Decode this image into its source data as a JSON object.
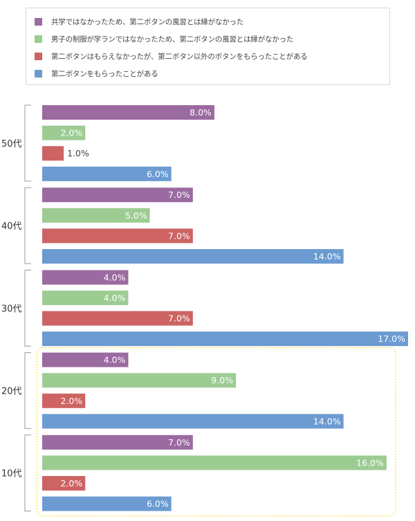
{
  "chart_data": {
    "type": "bar",
    "orientation": "horizontal",
    "categories": [
      "50代",
      "40代",
      "30代",
      "20代",
      "10代"
    ],
    "series": [
      {
        "name": "共学ではなかったため、第二ボタンの風習とは縁がなかった",
        "color": "#9b6aa0",
        "values": [
          8.0,
          7.0,
          4.0,
          4.0,
          7.0
        ]
      },
      {
        "name": "男子の制服が学ランではなかったため、第二ボタンの風習とは縁がなかった",
        "color": "#9dcc93",
        "values": [
          2.0,
          5.0,
          4.0,
          9.0,
          16.0
        ]
      },
      {
        "name": "第二ボタンはもらえなかったが、第二ボタン以外のボタンをもらったことがある",
        "color": "#cd6363",
        "values": [
          1.0,
          7.0,
          7.0,
          2.0,
          2.0
        ]
      },
      {
        "name": "第二ボタンをもらったことがある",
        "color": "#6b9bd1",
        "values": [
          6.0,
          14.0,
          17.0,
          14.0,
          6.0
        ]
      }
    ],
    "value_suffix": "%",
    "xlim": [
      0,
      17
    ],
    "grid": false,
    "legend": "top",
    "highlight_categories": [
      "20代",
      "10代"
    ],
    "highlight_color": "#f2e64a"
  }
}
